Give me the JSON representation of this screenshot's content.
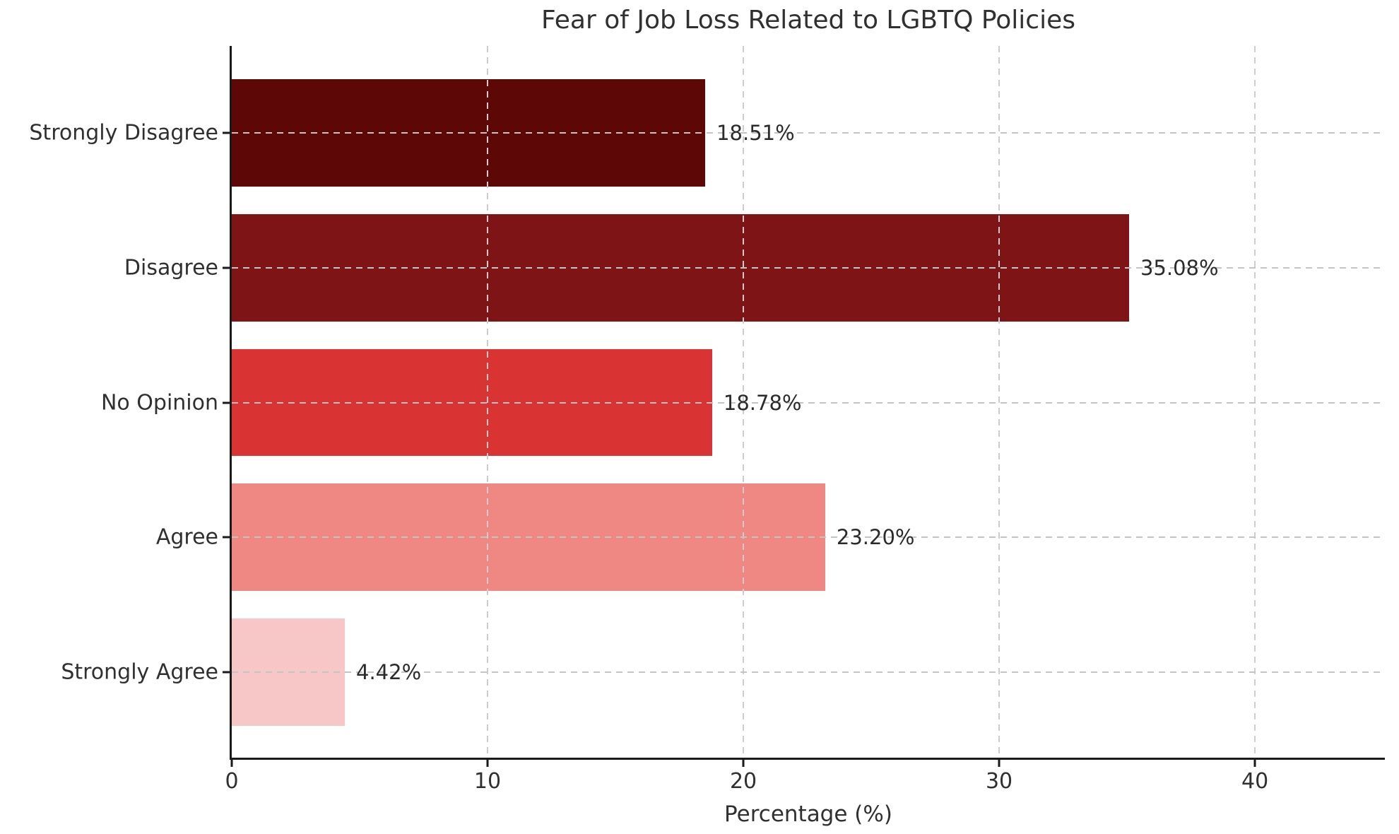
{
  "chart_data": {
    "type": "bar",
    "orientation": "horizontal",
    "title": "Fear of Job Loss Related to LGBTQ Policies",
    "xlabel": "Percentage (%)",
    "ylabel": "",
    "categories": [
      "Strongly Disagree",
      "Disagree",
      "No Opinion",
      "Agree",
      "Strongly Agree"
    ],
    "values": [
      18.51,
      35.08,
      18.78,
      23.2,
      4.42
    ],
    "value_labels": [
      "18.51%",
      "35.08%",
      "18.78%",
      "23.20%",
      "4.42%"
    ],
    "bar_colors": [
      "#5E0707",
      "#7F1416",
      "#D93334",
      "#EF8783",
      "#F7C6C6"
    ],
    "xlim": [
      0,
      45.08
    ],
    "xticks": [
      0,
      10,
      20,
      30,
      40
    ],
    "grid": true,
    "grid_style": "dashed",
    "legend": "none",
    "axis_color": "#1a1a1a",
    "grid_color": "#c6c6c6",
    "text_color": "#303030",
    "background_color": "#ffffff"
  }
}
